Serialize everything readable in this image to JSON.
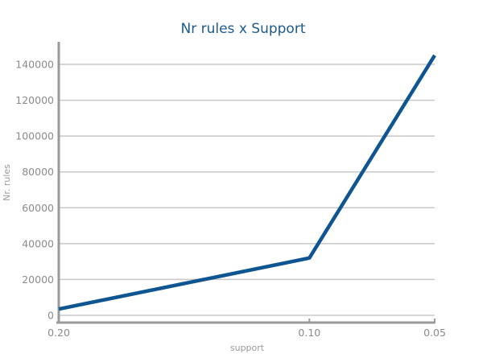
{
  "chart_data": {
    "type": "line",
    "title": "Nr rules x Support",
    "xlabel": "support",
    "ylabel": "Nr. rules",
    "x": [
      "0.20",
      "0.10",
      "0.05"
    ],
    "series": [
      {
        "values": [
          3500,
          32000,
          145000
        ]
      }
    ],
    "ylim": [
      0,
      140000
    ],
    "yticks": [
      0,
      20000,
      40000,
      60000,
      80000,
      100000,
      120000,
      140000
    ],
    "grid": true,
    "legend": "none",
    "colors": {
      "series": "#0f5591",
      "title": "#1c5a8c",
      "grid": "#c8c8c8",
      "axis": "#9a9a9a",
      "text": "#8a8a8a"
    }
  }
}
